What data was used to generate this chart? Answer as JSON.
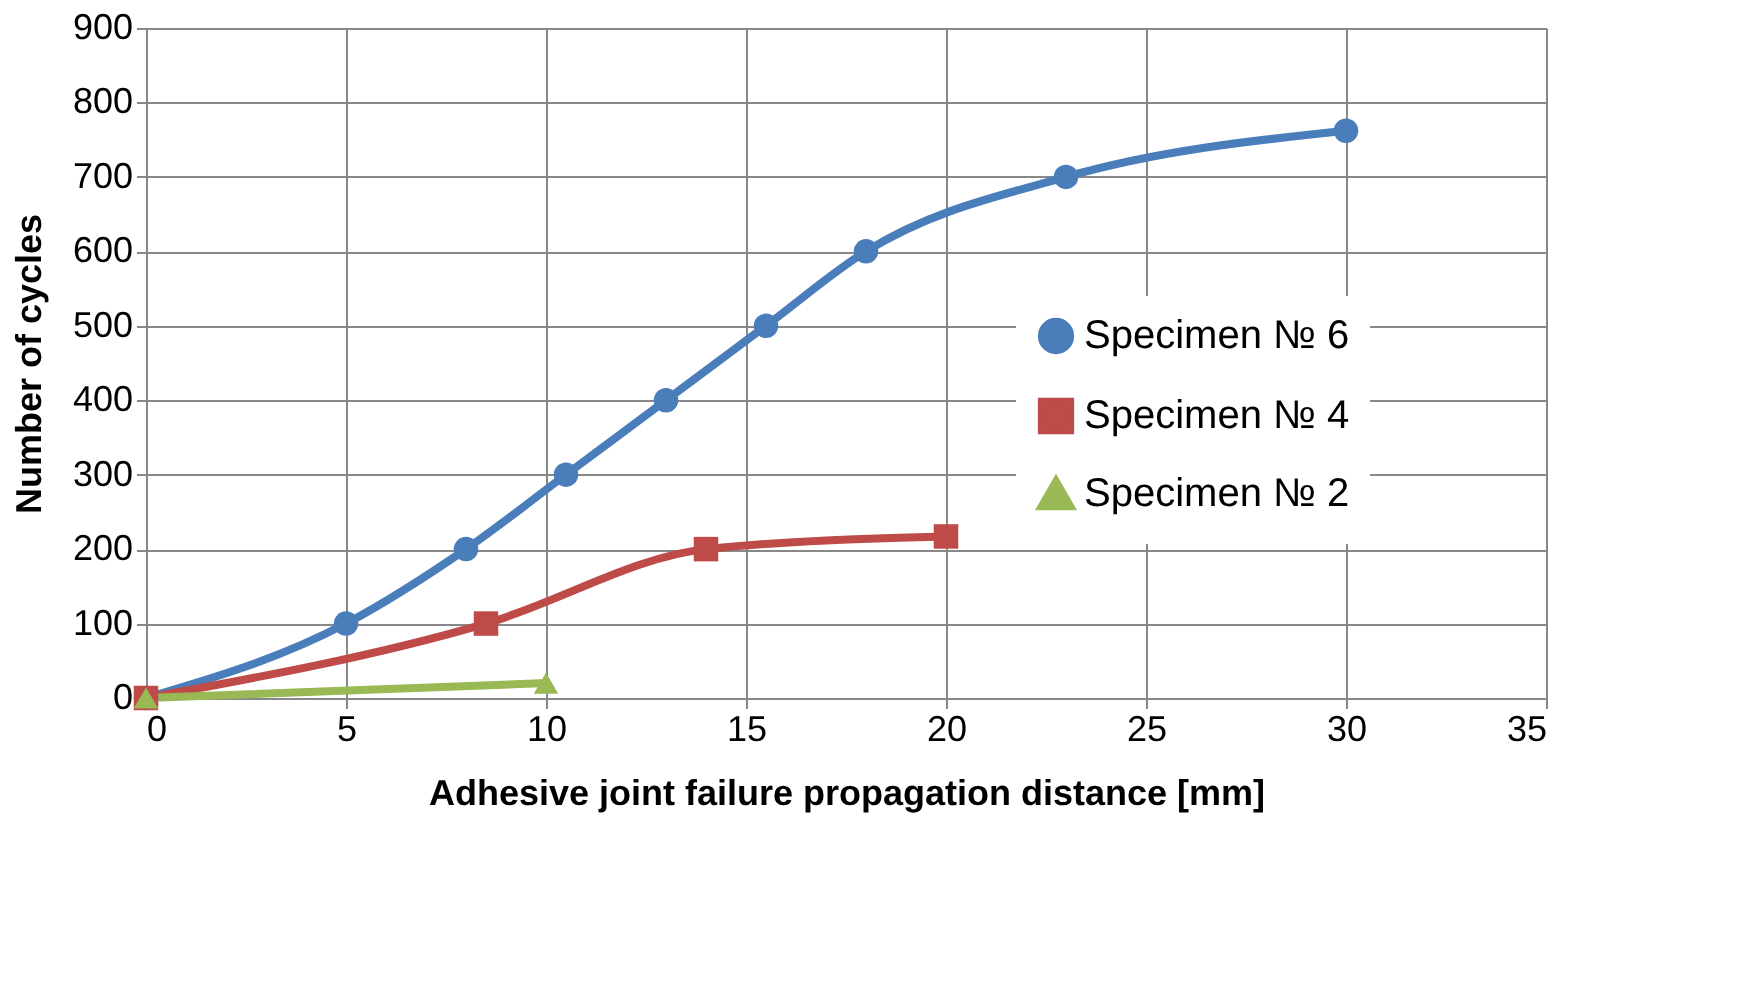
{
  "chart_data": {
    "type": "line",
    "xlabel": "Adhesive joint failure propagation distance [mm]",
    "ylabel": "Number of cycles",
    "xlim": [
      0,
      35
    ],
    "xticks": [
      0,
      5,
      10,
      15,
      20,
      25,
      30,
      35
    ],
    "ylim": [
      0,
      900
    ],
    "yticks": [
      0,
      100,
      200,
      300,
      400,
      500,
      600,
      700,
      800,
      900
    ],
    "grid": true,
    "legend": "right",
    "line_style": "solid",
    "series": [
      {
        "name": "Specimen № 6",
        "color": "#4a7ebb",
        "marker": "circle",
        "x": [
          0,
          5,
          8,
          10.5,
          13,
          15.5,
          18,
          23,
          30
        ],
        "values": [
          0,
          100,
          200,
          300,
          400,
          500,
          600,
          700,
          762
        ]
      },
      {
        "name": "Specimen № 4",
        "color": "#be4b48",
        "marker": "square",
        "x": [
          0,
          8.5,
          14,
          20
        ],
        "values": [
          0,
          100,
          200,
          217
        ]
      },
      {
        "name": "Specimen № 2",
        "color": "#98b954",
        "marker": "triangle",
        "x": [
          0,
          10
        ],
        "values": [
          0,
          20
        ]
      }
    ]
  }
}
